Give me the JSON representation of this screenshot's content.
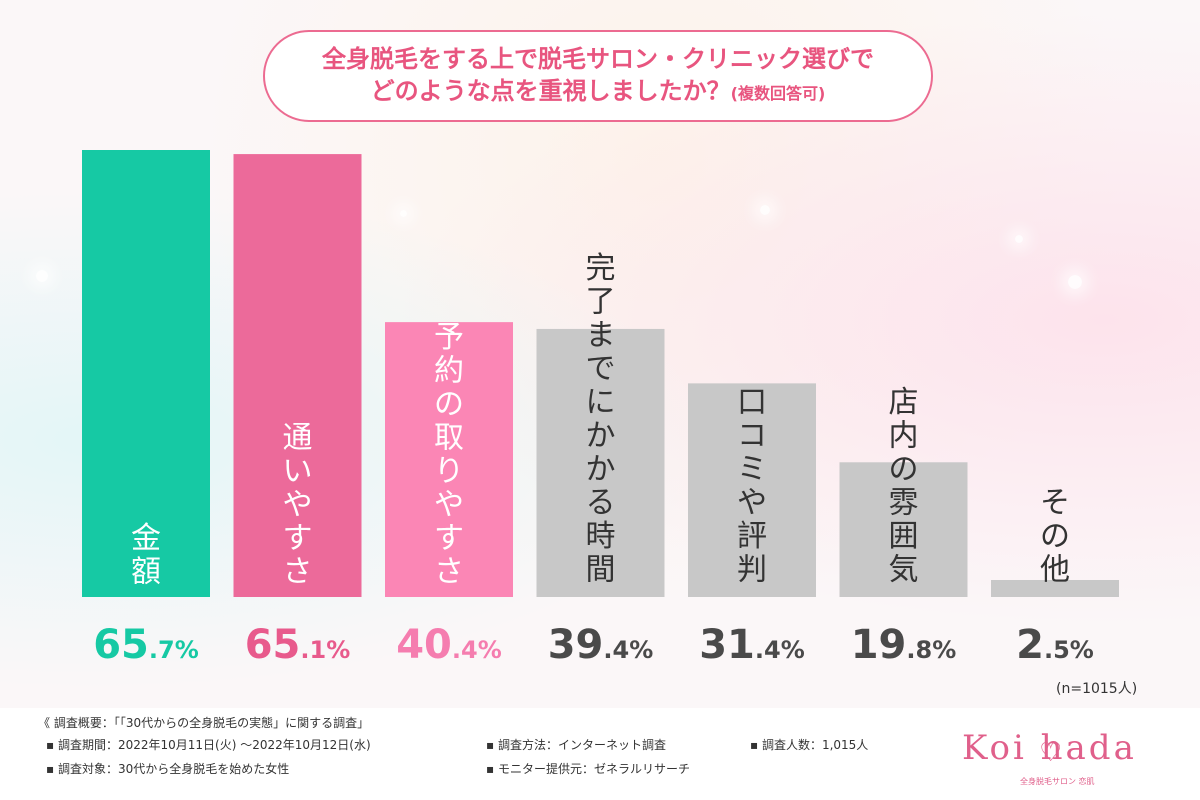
{
  "title": {
    "line1": "全身脱毛をする上で脱毛サロン・クリニック選びで",
    "line2": "どのような点を重視しましたか？",
    "note": "(複数回答可)"
  },
  "chart_data": {
    "type": "bar",
    "title": "全身脱毛をする上で脱毛サロン・クリニック選びでどのような点を重視しましたか？(複数回答可)",
    "categories": [
      "金額",
      "通いやすさ",
      "予約の取りやすさ",
      "完了までにかかる時間",
      "口コミや評判",
      "店内の雰囲気",
      "その他"
    ],
    "values": [
      65.7,
      65.1,
      40.4,
      39.4,
      31.4,
      19.8,
      2.5
    ],
    "value_labels": [
      "65.7%",
      "65.1%",
      "40.4%",
      "39.4%",
      "31.4%",
      "19.8%",
      "2.5%"
    ],
    "bar_colors": [
      "#16c9a4",
      "#ec6a9a",
      "#fb86b5",
      "#c8c8c8",
      "#c8c8c8",
      "#c8c8c8",
      "#c8c8c8"
    ],
    "label_colors": [
      "#16c9a4",
      "#e85a8c",
      "#f57daf",
      "#4a4a4a",
      "#4a4a4a",
      "#4a4a4a",
      "#4a4a4a"
    ],
    "category_text_colors": [
      "#ffffff",
      "#ffffff",
      "#ffffff",
      "#333333",
      "#333333",
      "#333333",
      "#333333"
    ],
    "ylim": [
      0,
      70
    ],
    "grid": false,
    "legend": "none"
  },
  "n_label": "(n=1015人)",
  "footer": {
    "heading": "《 調査概要：「「30代からの全身脱毛の実態」に関する調査」",
    "period": "▪ 調査期間：2022年10月11日(火) 〜2022年10月12日(水)",
    "method": "▪ 調査方法：インターネット調査",
    "count": "▪ 調査人数：1,015人",
    "target": "▪ 調査対象：30代から全身脱毛を始めた女性",
    "provider": "▪ モニター提供元：ゼネラルリサーチ"
  },
  "logo": {
    "text": "Koi  hada",
    "sub": "全身脱毛サロン 恋肌"
  },
  "colors": {
    "accent": "#e8557f",
    "bar_gray": "#c8c8c8"
  }
}
